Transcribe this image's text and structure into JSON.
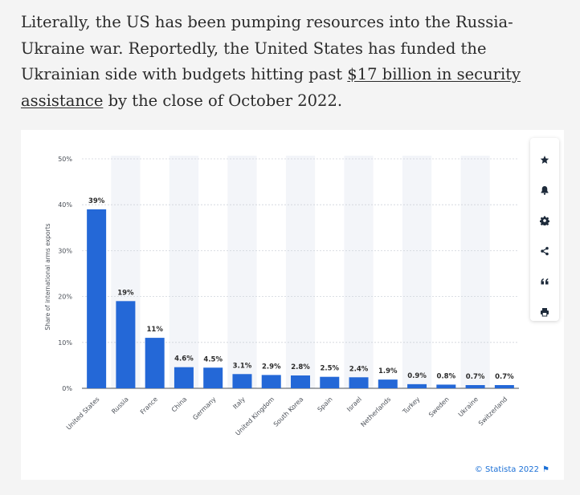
{
  "article": {
    "text_before": "Literally, the US has been pumping resources into the Russia-Ukraine war. Reportedly, the United States has funded the Ukrainian side with budgets hitting past ",
    "link_text": "$17 billion in security assistance",
    "text_after": " by the close of October 2022."
  },
  "toolbar": {
    "icons": [
      "star-icon",
      "bell-icon",
      "gear-icon",
      "share-icon",
      "quote-icon",
      "print-icon"
    ]
  },
  "credit": "© Statista 2022",
  "colors": {
    "bar": "#2468d7",
    "band": "#f3f5f9",
    "grid": "#cfd3da",
    "link": "#1a6fd6"
  },
  "chart_data": {
    "type": "bar",
    "ylabel": "Share of international arms exports",
    "ylim": [
      0,
      50
    ],
    "yticks": [
      "0%",
      "10%",
      "20%",
      "30%",
      "40%",
      "50%"
    ],
    "categories": [
      "United States",
      "Russia",
      "France",
      "China",
      "Germany",
      "Italy",
      "United Kingdom",
      "South Korea",
      "Spain",
      "Israel",
      "Netherlands",
      "Turkey",
      "Sweden",
      "Ukraine",
      "Switzerland"
    ],
    "values": [
      39,
      19,
      11,
      4.6,
      4.5,
      3.1,
      2.9,
      2.8,
      2.5,
      2.4,
      1.9,
      0.9,
      0.8,
      0.7,
      0.7
    ],
    "labels": [
      "39%",
      "19%",
      "11%",
      "4.6%",
      "4.5%",
      "3.1%",
      "2.9%",
      "2.8%",
      "2.5%",
      "2.4%",
      "1.9%",
      "0.9%",
      "0.8%",
      "0.7%",
      "0.7%"
    ],
    "grid": true
  }
}
